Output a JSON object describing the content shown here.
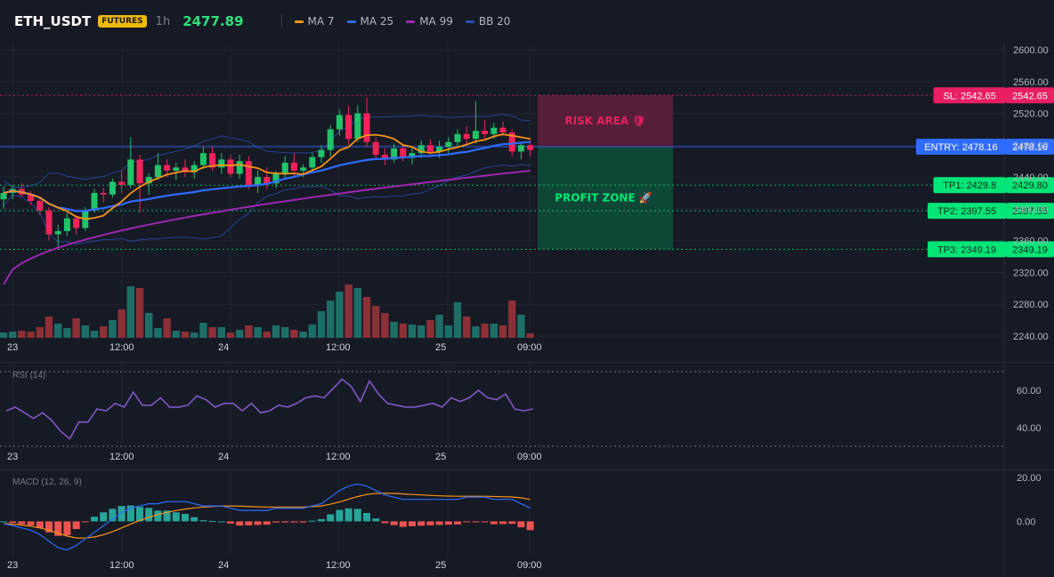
{
  "header": {
    "symbol": "ETH_USDT",
    "badge": "FUTURES",
    "timeframe": "1h",
    "last_price": "2477.89"
  },
  "legend": [
    {
      "label": "MA 7",
      "color": "#f7931a"
    },
    {
      "label": "MA 25",
      "color": "#2f6bff"
    },
    {
      "label": "MA 99",
      "color": "#9c27b0"
    },
    {
      "label": "BB 20",
      "color": "#2a4db0"
    }
  ],
  "colors": {
    "up": "#26a69a",
    "down": "#ef5350",
    "vol_up": "#1d6e66",
    "vol_down": "#8c2f36",
    "rsi": "#7e57c2",
    "macd": "#2f6bff",
    "signal": "#f7931a",
    "sl": "#e91e63",
    "entry": "#2f6bff",
    "tp": "#00e676"
  },
  "annotations": {
    "risk_label": "RISK AREA 🛡",
    "profit_label": "PROFIT ZONE 🚀"
  },
  "chart_data": [
    {
      "type": "candlestick",
      "x_tick_labels": [
        "23",
        "12:00",
        "24",
        "12:00",
        "25",
        "09:00"
      ],
      "y_ticks": [
        "2600.00",
        "2560.00",
        "2520.00",
        "2480.00",
        "2440.00",
        "2400.00",
        "2360.00",
        "2320.00",
        "2280.00",
        "2240.00"
      ],
      "ylim": [
        2240,
        2600
      ],
      "levels": [
        {
          "name": "SL",
          "label": "SL: 2542.65",
          "price": 2542.65,
          "price_text": "2542.65"
        },
        {
          "name": "ENTRY",
          "label": "ENTRY: 2478.16",
          "price": 2478.16,
          "price_text": "2478.16"
        },
        {
          "name": "TP1",
          "label": "TP1: 2429.8",
          "price": 2429.8,
          "price_text": "2429.80"
        },
        {
          "name": "TP2",
          "label": "TP2: 2397.55",
          "price": 2397.55,
          "price_text": "2397.55"
        },
        {
          "name": "TP3",
          "label": "TP3: 2349.19",
          "price": 2349.19,
          "price_text": "2349.19"
        }
      ],
      "candles": [
        [
          2412,
          2428,
          2400,
          2420
        ],
        [
          2420,
          2430,
          2412,
          2425
        ],
        [
          2425,
          2432,
          2415,
          2418
        ],
        [
          2418,
          2422,
          2405,
          2410
        ],
        [
          2410,
          2415,
          2392,
          2398
        ],
        [
          2398,
          2402,
          2360,
          2368
        ],
        [
          2368,
          2380,
          2350,
          2372
        ],
        [
          2372,
          2395,
          2366,
          2388
        ],
        [
          2388,
          2392,
          2368,
          2376
        ],
        [
          2376,
          2402,
          2372,
          2398
        ],
        [
          2398,
          2425,
          2395,
          2420
        ],
        [
          2420,
          2426,
          2408,
          2418
        ],
        [
          2418,
          2438,
          2414,
          2434
        ],
        [
          2434,
          2448,
          2420,
          2430
        ],
        [
          2430,
          2490,
          2426,
          2462
        ],
        [
          2462,
          2468,
          2395,
          2432
        ],
        [
          2432,
          2445,
          2418,
          2440
        ],
        [
          2440,
          2470,
          2436,
          2455
        ],
        [
          2455,
          2462,
          2440,
          2448
        ],
        [
          2448,
          2458,
          2436,
          2452
        ],
        [
          2452,
          2462,
          2440,
          2446
        ],
        [
          2446,
          2460,
          2438,
          2455
        ],
        [
          2455,
          2478,
          2450,
          2470
        ],
        [
          2470,
          2478,
          2448,
          2452
        ],
        [
          2452,
          2470,
          2444,
          2462
        ],
        [
          2462,
          2468,
          2440,
          2444
        ],
        [
          2444,
          2468,
          2438,
          2460
        ],
        [
          2460,
          2466,
          2425,
          2430
        ],
        [
          2430,
          2448,
          2420,
          2440
        ],
        [
          2440,
          2452,
          2425,
          2432
        ],
        [
          2432,
          2448,
          2426,
          2444
        ],
        [
          2444,
          2466,
          2438,
          2458
        ],
        [
          2458,
          2470,
          2440,
          2448
        ],
        [
          2448,
          2456,
          2440,
          2452
        ],
        [
          2452,
          2470,
          2446,
          2465
        ],
        [
          2465,
          2480,
          2458,
          2474
        ],
        [
          2474,
          2506,
          2466,
          2500
        ],
        [
          2500,
          2525,
          2492,
          2518
        ],
        [
          2518,
          2530,
          2480,
          2488
        ],
        [
          2488,
          2530,
          2484,
          2520
        ],
        [
          2520,
          2540,
          2478,
          2484
        ],
        [
          2484,
          2490,
          2462,
          2468
        ],
        [
          2468,
          2476,
          2455,
          2462
        ],
        [
          2462,
          2482,
          2458,
          2476
        ],
        [
          2476,
          2480,
          2460,
          2464
        ],
        [
          2464,
          2476,
          2456,
          2470
        ],
        [
          2470,
          2486,
          2464,
          2480
        ],
        [
          2480,
          2488,
          2468,
          2472
        ],
        [
          2472,
          2486,
          2464,
          2478
        ],
        [
          2478,
          2490,
          2470,
          2484
        ],
        [
          2484,
          2500,
          2476,
          2494
        ],
        [
          2494,
          2504,
          2480,
          2488
        ],
        [
          2488,
          2535,
          2482,
          2498
        ],
        [
          2498,
          2512,
          2486,
          2494
        ],
        [
          2494,
          2508,
          2488,
          2502
        ],
        [
          2502,
          2510,
          2492,
          2496
        ],
        [
          2496,
          2500,
          2466,
          2472
        ],
        [
          2472,
          2484,
          2462,
          2480
        ],
        [
          2480,
          2488,
          2466,
          2474
        ]
      ],
      "volume": [
        6,
        7,
        8,
        7,
        12,
        24,
        16,
        11,
        22,
        14,
        8,
        13,
        20,
        32,
        58,
        56,
        28,
        11,
        22,
        8,
        7,
        6,
        17,
        12,
        12,
        6,
        9,
        14,
        12,
        7,
        14,
        12,
        9,
        7,
        15,
        30,
        42,
        52,
        60,
        56,
        46,
        36,
        28,
        18,
        16,
        15,
        14,
        20,
        26,
        14,
        40,
        24,
        13,
        16,
        16,
        14,
        42,
        26,
        5
      ]
    },
    {
      "type": "line",
      "title": "RSI (14)",
      "y_ticks": [
        "60.00",
        "40.00"
      ],
      "ylim": [
        30,
        70
      ],
      "values": [
        49,
        51,
        48,
        45,
        48,
        44,
        38,
        34,
        43,
        43,
        50,
        49,
        53,
        51,
        59,
        52,
        52,
        56,
        51,
        51,
        52,
        57,
        55,
        51,
        53,
        53,
        49,
        53,
        48,
        49,
        52,
        51,
        53,
        56,
        57,
        56,
        61,
        66,
        62,
        54,
        65,
        58,
        53,
        52,
        51,
        51,
        52,
        53,
        51,
        56,
        54,
        56,
        60,
        56,
        55,
        58,
        50,
        49,
        50
      ]
    },
    {
      "type": "line",
      "title": "MACD (12, 26, 9)",
      "y_ticks": [
        "20.00",
        "0.00"
      ],
      "ylim": [
        -16,
        22
      ],
      "macd": [
        -1,
        -2,
        -3,
        -4,
        -6,
        -9,
        -12,
        -13,
        -11,
        -8,
        -5,
        -2,
        1,
        4,
        6,
        7,
        8,
        8,
        9,
        9,
        9,
        8,
        7,
        7,
        7,
        6,
        5,
        5,
        5,
        5,
        6,
        6,
        6,
        6,
        7,
        8,
        11,
        14,
        16,
        17,
        16,
        14,
        12,
        11,
        10,
        10,
        10,
        10,
        10,
        10,
        10,
        11,
        11,
        11,
        10,
        10,
        10,
        8,
        6
      ],
      "signal": [
        -1,
        -1.3,
        -1.7,
        -2.2,
        -3,
        -4,
        -5.4,
        -6.7,
        -7.5,
        -7.6,
        -7.1,
        -6.1,
        -4.7,
        -3,
        -1.2,
        0.4,
        1.9,
        3.1,
        4.1,
        4.9,
        5.6,
        6.1,
        6.5,
        6.8,
        7,
        7,
        6.9,
        6.8,
        6.6,
        6.5,
        6.5,
        6.5,
        6.5,
        6.5,
        6.7,
        7,
        7.8,
        8.8,
        10.1,
        11.3,
        12.2,
        12.7,
        12.8,
        12.7,
        12.5,
        12.2,
        12,
        11.8,
        11.6,
        11.5,
        11.4,
        11.4,
        11.4,
        11.4,
        11.3,
        11.2,
        11.1,
        10.7,
        10
      ]
    }
  ]
}
